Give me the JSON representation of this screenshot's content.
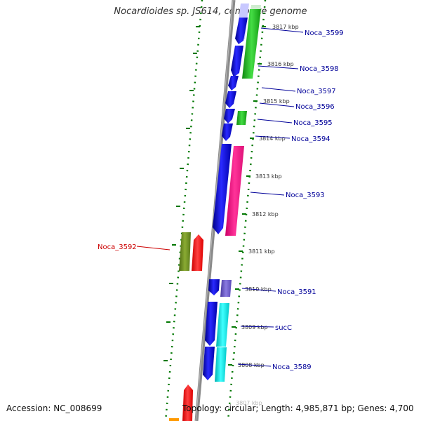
{
  "title": "Nocardioides sp. JS614, complete genome",
  "footer": {
    "accession": "Accession: NC_008699",
    "genome_info": "Topology: circular; Length: 4,985,871 bp; Genes: 4,700"
  },
  "colors": {
    "forward_cds": "#0000ee",
    "reverse_cds": "#1fbf1f",
    "magenta_gene": "#ff1493",
    "cyan_gene": "#00e5e5",
    "olive_gene": "#6b8e23",
    "red_gene": "#ff0000",
    "purple_gene": "#6a5acd",
    "label_blue": "#000099",
    "label_red": "#cc0000",
    "backbone": "#808080",
    "tick_green": "#007700"
  },
  "kbp_marks": [
    "3817 kbp",
    "3816 kbp",
    "3815 kbp",
    "3814 kbp",
    "3813 kbp",
    "3812 kbp",
    "3811 kbp",
    "3810 kbp",
    "3809 kbp",
    "3808 kbp",
    "3807 kbp"
  ],
  "gene_labels": [
    "Noca_3599",
    "Noca_3598",
    "Noca_3597",
    "Noca_3596",
    "Noca_3595",
    "Noca_3594",
    "Noca_3593",
    "Noca_3592",
    "Noca_3591",
    "sucC",
    "Noca_3589"
  ]
}
